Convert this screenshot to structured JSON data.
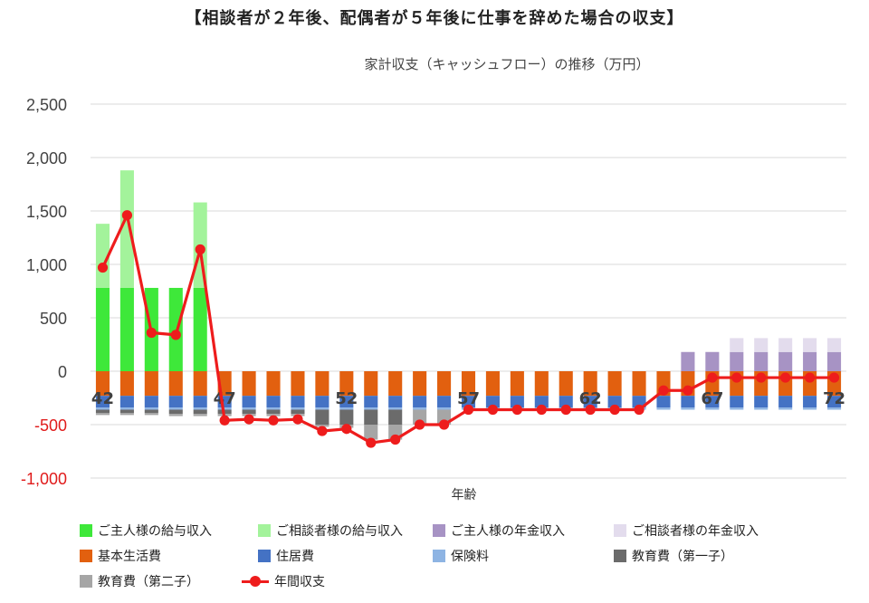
{
  "title": "【相談者が２年後、配偶者が５年後に仕事を辞めた場合の収支】",
  "subtitle": "家計収支（キャッシュフロー）の推移（万円）",
  "chart_data": {
    "type": "bar",
    "xlabel": "年齢",
    "ylim": [
      -1000,
      2500
    ],
    "yticks": [
      "2,500",
      "2,000",
      "1,500",
      "1,000",
      "500",
      "0",
      "-500",
      "-1,000"
    ],
    "x": [
      42,
      43,
      44,
      45,
      46,
      47,
      48,
      49,
      50,
      51,
      52,
      53,
      54,
      55,
      56,
      57,
      58,
      59,
      60,
      61,
      62,
      63,
      64,
      65,
      66,
      67,
      68,
      69,
      70,
      71,
      72
    ],
    "x_labels": [
      "42",
      "47",
      "52",
      "57",
      "62",
      "67",
      "72"
    ],
    "series": [
      {
        "name": "ご主人様の給与収入",
        "color": "#3ee83a",
        "values": [
          780,
          780,
          780,
          780,
          780,
          0,
          0,
          0,
          0,
          0,
          0,
          0,
          0,
          0,
          0,
          0,
          0,
          0,
          0,
          0,
          0,
          0,
          0,
          0,
          0,
          0,
          0,
          0,
          0,
          0,
          0
        ]
      },
      {
        "name": "ご相談者様の給与収入",
        "color": "#a3f39b",
        "values": [
          600,
          1100,
          0,
          0,
          800,
          0,
          0,
          0,
          0,
          0,
          0,
          0,
          0,
          0,
          0,
          0,
          0,
          0,
          0,
          0,
          0,
          0,
          0,
          0,
          0,
          0,
          0,
          0,
          0,
          0,
          0
        ]
      },
      {
        "name": "ご主人様の年金収入",
        "color": "#a793c4",
        "values": [
          0,
          0,
          0,
          0,
          0,
          0,
          0,
          0,
          0,
          0,
          0,
          0,
          0,
          0,
          0,
          0,
          0,
          0,
          0,
          0,
          0,
          0,
          0,
          0,
          180,
          180,
          180,
          180,
          180,
          180,
          180
        ]
      },
      {
        "name": "ご相談者様の年金収入",
        "color": "#e3dced",
        "values": [
          0,
          0,
          0,
          0,
          0,
          0,
          0,
          0,
          0,
          0,
          0,
          0,
          0,
          0,
          0,
          0,
          0,
          0,
          0,
          0,
          0,
          0,
          0,
          0,
          0,
          0,
          130,
          130,
          130,
          130,
          130
        ]
      },
      {
        "name": "基本生活費",
        "color": "#e2600f",
        "values": [
          -230,
          -230,
          -230,
          -230,
          -230,
          -230,
          -230,
          -230,
          -230,
          -230,
          -230,
          -230,
          -230,
          -230,
          -230,
          -230,
          -230,
          -230,
          -230,
          -230,
          -230,
          -230,
          -230,
          -230,
          -230,
          -230,
          -230,
          -230,
          -230,
          -230,
          -230
        ]
      },
      {
        "name": "住居費",
        "color": "#4472c4",
        "values": [
          -110,
          -110,
          -110,
          -110,
          -110,
          -110,
          -110,
          -110,
          -110,
          -110,
          -110,
          -110,
          -110,
          -110,
          -110,
          -110,
          -110,
          -110,
          -110,
          -110,
          -110,
          -110,
          -110,
          -110,
          -110,
          -110,
          -110,
          -110,
          -110,
          -110,
          -110
        ]
      },
      {
        "name": "保険料",
        "color": "#8eb4e3",
        "values": [
          -20,
          -20,
          -20,
          -20,
          -20,
          -20,
          -20,
          -20,
          -20,
          -20,
          -20,
          -20,
          -20,
          -20,
          -20,
          -20,
          -20,
          -20,
          -20,
          -20,
          -20,
          -20,
          -20,
          -20,
          -20,
          -20,
          -20,
          -20,
          -20,
          -20,
          -20
        ]
      },
      {
        "name": "教育費（第一子）",
        "color": "#6b6b6b",
        "values": [
          -30,
          -30,
          -30,
          -40,
          -40,
          -40,
          -40,
          -40,
          -40,
          -140,
          -140,
          -140,
          -140,
          0,
          0,
          0,
          0,
          0,
          0,
          0,
          0,
          0,
          0,
          0,
          0,
          0,
          0,
          0,
          0,
          0,
          0
        ]
      },
      {
        "name": "教育費（第二子）",
        "color": "#a6a6a6",
        "values": [
          -20,
          -20,
          -20,
          -20,
          -20,
          -20,
          -20,
          -20,
          -20,
          -20,
          -30,
          -140,
          -140,
          -140,
          -140,
          0,
          0,
          0,
          0,
          0,
          0,
          0,
          0,
          0,
          0,
          0,
          0,
          0,
          0,
          0,
          0
        ]
      },
      {
        "name": "年間収支",
        "color": "#ee1c1c",
        "line": true,
        "values": [
          970,
          1460,
          360,
          340,
          1140,
          -460,
          -450,
          -460,
          -450,
          -560,
          -540,
          -670,
          -640,
          -500,
          -500,
          -360,
          -360,
          -360,
          -360,
          -360,
          -360,
          -360,
          -360,
          -180,
          -180,
          -60,
          -60,
          -60,
          -60,
          -60,
          -60
        ]
      }
    ]
  }
}
